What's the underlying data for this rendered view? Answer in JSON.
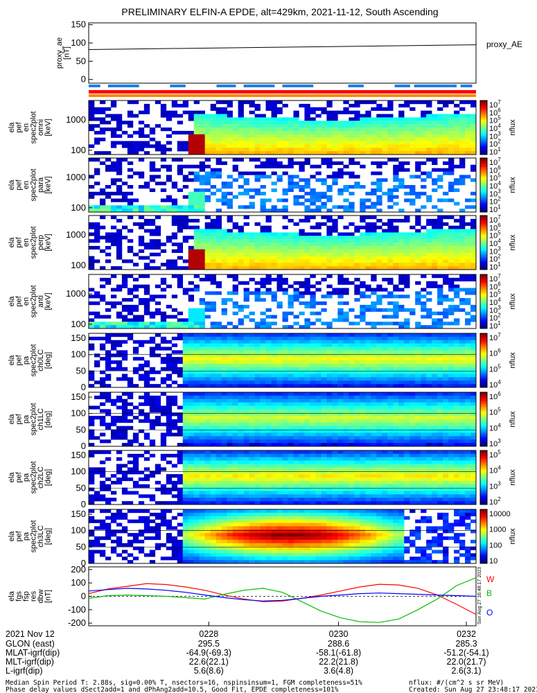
{
  "chart_data": {
    "type": "heatmap",
    "title": "PRELIMINARY ELFIN-A EPDE, alt=429km, 2021-11-12, South Ascending",
    "proxy_panel": {
      "ylabel": "proxy_ae\n[nT]",
      "series_name": "proxy_AE",
      "yticks": [
        "150",
        "100",
        "50",
        "0"
      ],
      "ylim": [
        -10,
        155
      ],
      "values": [
        82,
        95
      ]
    },
    "spectrogram_panels": [
      {
        "ylabel": "ela\npef\nen\nspec2plot\nomni\n[keV]",
        "yticks": [
          "1000",
          "100"
        ],
        "cbar_ticks": [
          "10^7",
          "10^6",
          "10^5",
          "10^4",
          "10^3",
          "10^2",
          "10^1"
        ],
        "cbar_label": "nflux",
        "kind": "energy",
        "intensity": 1.0
      },
      {
        "ylabel": "ela\npef\nen\nspec2plot\npara\n[keV]",
        "yticks": [
          "1000",
          "100"
        ],
        "cbar_ticks": [
          "10^7",
          "10^6",
          "10^5",
          "10^4",
          "10^3",
          "10^2",
          "10^1"
        ],
        "cbar_label": "nflux",
        "kind": "energy_sparse",
        "intensity": 0.4
      },
      {
        "ylabel": "ela\npef\nen\nspec2plot\nperp\n[keV]",
        "yticks": [
          "1000",
          "100"
        ],
        "cbar_ticks": [
          "10^7",
          "10^6",
          "10^5",
          "10^4",
          "10^3",
          "10^2",
          "10^1"
        ],
        "cbar_label": "nflux",
        "kind": "energy",
        "intensity": 1.0
      },
      {
        "ylabel": "ela\npef\nen\nspec2plot\nanti\n[keV]",
        "yticks": [
          "1000",
          "100"
        ],
        "cbar_ticks": [
          "10^7",
          "10^6",
          "10^5",
          "10^4",
          "10^3",
          "10^2",
          "10^1"
        ],
        "cbar_label": "nflux",
        "kind": "energy_sparse",
        "intensity": 0.3
      },
      {
        "ylabel": "ela\npef\npa\nspec2plot\nch0LC\n[deg]",
        "yticks": [
          "150",
          "100",
          "50",
          "0"
        ],
        "cbar_ticks": [
          "10^7",
          "10^6",
          "10^5",
          "10^4"
        ],
        "cbar_label": "nflux",
        "kind": "pitch",
        "intensity": 0.75
      },
      {
        "ylabel": "ela\npef\npa\nspec2plot\nch1LC\n[deg]",
        "yticks": [
          "150",
          "100",
          "50",
          "0"
        ],
        "cbar_ticks": [
          "10^6",
          "10^5",
          "10^4",
          "10^3"
        ],
        "cbar_label": "nflux",
        "kind": "pitch",
        "intensity": 0.7
      },
      {
        "ylabel": "ela\npef\npa\nspec2plot\nch2LC\n[deg]",
        "yticks": [
          "150",
          "100",
          "50",
          "0"
        ],
        "cbar_ticks": [
          "10^5",
          "10^4",
          "10^3",
          "10^2"
        ],
        "cbar_label": "nflux",
        "kind": "pitch",
        "intensity": 0.78
      },
      {
        "ylabel": "ela\npef\npa\nspec2plot\nch3LC\n[deg]",
        "yticks": [
          "150",
          "100",
          "50",
          "0"
        ],
        "cbar_ticks": [
          "10000",
          "1000",
          "100",
          "10"
        ],
        "cbar_label": "nflux",
        "kind": "pitch_hot",
        "intensity": 1.0
      }
    ],
    "fgm_panel": {
      "ylabel": "ela\nfgs\nfsp\nres\ndbw\n[nT]",
      "yticks": [
        "200",
        "100",
        "0",
        "-100",
        "-200"
      ],
      "ylim": [
        -220,
        220
      ],
      "series": [
        {
          "name": "W",
          "color": "#ff0000",
          "x": [
            0.0,
            0.05,
            0.1,
            0.15,
            0.2,
            0.25,
            0.3,
            0.35,
            0.4,
            0.45,
            0.5,
            0.55,
            0.6,
            0.65,
            0.7,
            0.75,
            0.8,
            0.85,
            0.9,
            0.95,
            1.0
          ],
          "values": [
            20,
            55,
            75,
            95,
            88,
            70,
            45,
            10,
            -20,
            -40,
            -35,
            -15,
            10,
            40,
            70,
            90,
            85,
            60,
            10,
            -60,
            -135
          ]
        },
        {
          "name": "B",
          "color": "#00bb00",
          "x": [
            0.0,
            0.05,
            0.1,
            0.15,
            0.2,
            0.25,
            0.3,
            0.35,
            0.4,
            0.45,
            0.5,
            0.55,
            0.6,
            0.65,
            0.7,
            0.75,
            0.8,
            0.85,
            0.9,
            0.95,
            1.0
          ],
          "values": [
            -15,
            5,
            10,
            5,
            0,
            -10,
            -20,
            15,
            45,
            60,
            30,
            -40,
            -110,
            -160,
            -190,
            -195,
            -170,
            -100,
            -20,
            80,
            140
          ]
        },
        {
          "name": "O",
          "color": "#0000ff",
          "x": [
            0.0,
            0.05,
            0.1,
            0.15,
            0.2,
            0.25,
            0.3,
            0.35,
            0.4,
            0.45,
            0.5,
            0.55,
            0.6,
            0.65,
            0.7,
            0.75,
            0.8,
            0.85,
            0.9,
            0.95,
            1.0
          ],
          "values": [
            40,
            50,
            60,
            55,
            45,
            30,
            10,
            -10,
            -25,
            -35,
            -30,
            -15,
            0,
            10,
            20,
            25,
            20,
            15,
            10,
            5,
            0
          ]
        }
      ],
      "side_note": "Sun Aug 27 16:48:17 2023"
    },
    "flags": {
      "blue_segments": [
        [
          0.0,
          0.03
        ],
        [
          0.05,
          0.13
        ],
        [
          0.21,
          0.25
        ],
        [
          0.33,
          0.38
        ],
        [
          0.4,
          0.48
        ],
        [
          0.5,
          0.58
        ],
        [
          0.67,
          0.71
        ],
        [
          0.79,
          0.83
        ],
        [
          0.84,
          0.95
        ],
        [
          0.96,
          0.99
        ]
      ]
    }
  },
  "time_axis": {
    "row_labels": [
      "2021 Nov 12",
      "GLON (east)",
      "MLAT-igrf(dip)",
      "MLT-igrf(dip)",
      "L-igrf(dip)"
    ],
    "columns": [
      {
        "time": "0228",
        "frac": 0.31,
        "vals": [
          "295.5",
          "-64.9(-69.3)",
          "22.6(22.1)",
          "5.6(8.6)"
        ]
      },
      {
        "time": "0230",
        "frac": 0.645,
        "vals": [
          "288.6",
          "-58.1(-61.8)",
          "22.2(21.8)",
          "3.6(4.8)"
        ]
      },
      {
        "time": "0232",
        "frac": 0.975,
        "vals": [
          "285.3",
          "-51.2(-54.1)",
          "22.0(21.7)",
          "2.6(3.1)"
        ]
      }
    ]
  },
  "footer": {
    "line1": "Median Spin Period T: 2.88s, sig=0.00% T, nsectors=16, nspinsinsum=1, FGM completeness=51%",
    "line2": "Phase delay values dSect2add=1 and dPhAng2add=10.5, Good Fit, EPDE completeness=101%",
    "right1": "nflux: #/(cm^2 s sr MeV)",
    "right2": "Created: Sun Aug 27 23:48:17 2023"
  }
}
